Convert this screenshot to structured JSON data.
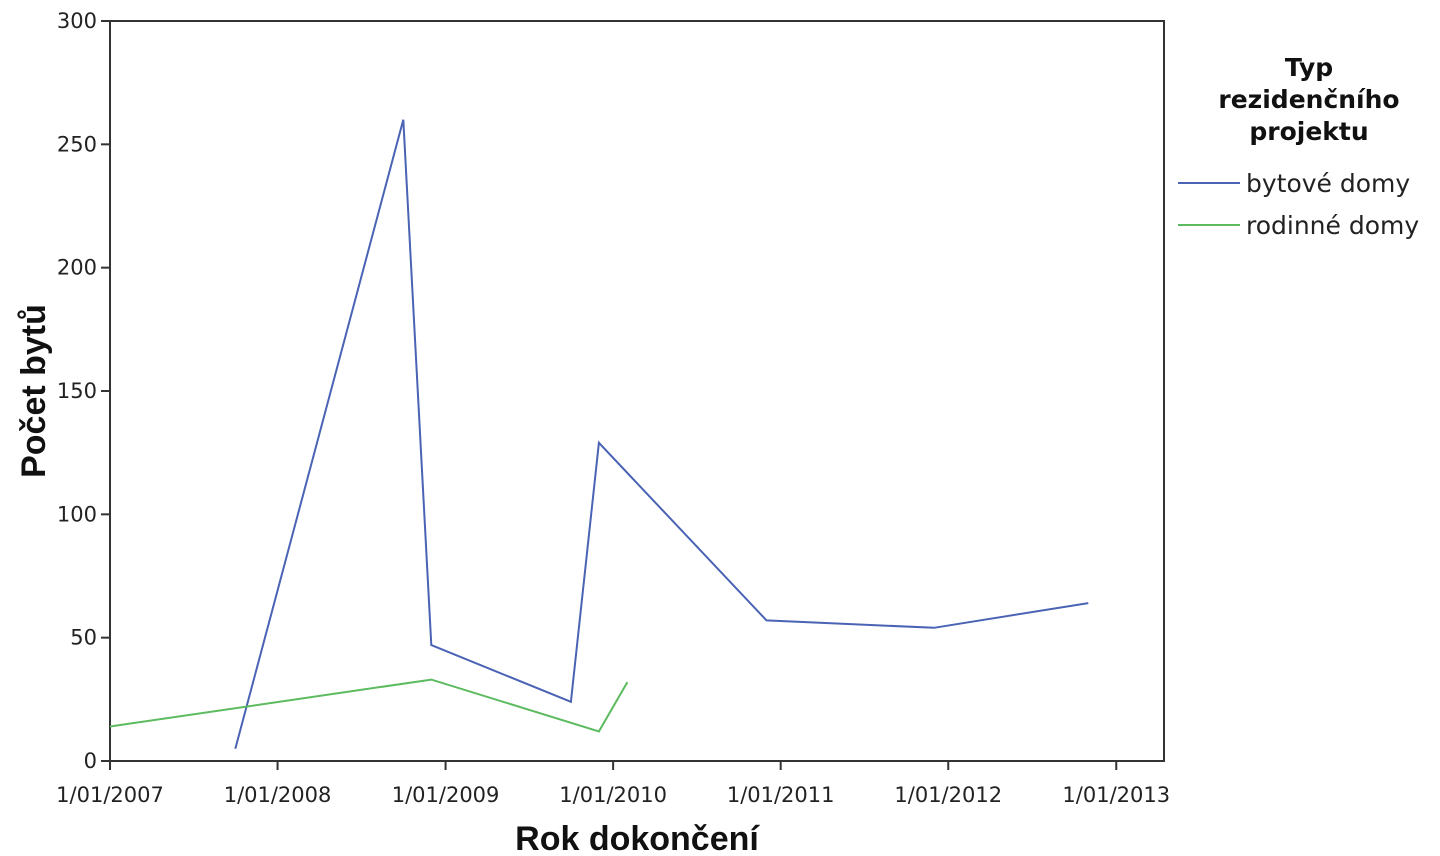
{
  "chart_data": {
    "type": "line",
    "xlabel": "Rok dokončení",
    "ylabel": "Počet bytů",
    "x_ticks": [
      "1/01/2007",
      "1/01/2008",
      "1/01/2009",
      "1/01/2010",
      "1/01/2011",
      "1/01/2012",
      "1/01/2013"
    ],
    "y_ticks": [
      "0",
      "50",
      "100",
      "150",
      "200",
      "250",
      "300"
    ],
    "xlim": [
      "2007-01-01",
      "2013-04-15"
    ],
    "ylim": [
      0,
      300
    ],
    "grid": false,
    "legend": {
      "title_lines": [
        "Typ",
        "rezidenčního",
        "projektu"
      ],
      "placement": "right"
    },
    "series": [
      {
        "name": "bytové domy",
        "color": "#4a63b4",
        "points": [
          {
            "x": "2007-10-01",
            "y": 5
          },
          {
            "x": "2008-10-01",
            "y": 260
          },
          {
            "x": "2008-12-01",
            "y": 47
          },
          {
            "x": "2009-10-01",
            "y": 24
          },
          {
            "x": "2009-12-01",
            "y": 129
          },
          {
            "x": "2010-12-01",
            "y": 57
          },
          {
            "x": "2011-12-01",
            "y": 54
          },
          {
            "x": "2012-11-01",
            "y": 64
          }
        ]
      },
      {
        "name": "rodinné domy",
        "color": "#5cbb5f",
        "points": [
          {
            "x": "2007-01-01",
            "y": 14
          },
          {
            "x": "2008-12-01",
            "y": 33
          },
          {
            "x": "2009-12-01",
            "y": 12
          },
          {
            "x": "2010-02-01",
            "y": 32
          }
        ]
      }
    ]
  }
}
